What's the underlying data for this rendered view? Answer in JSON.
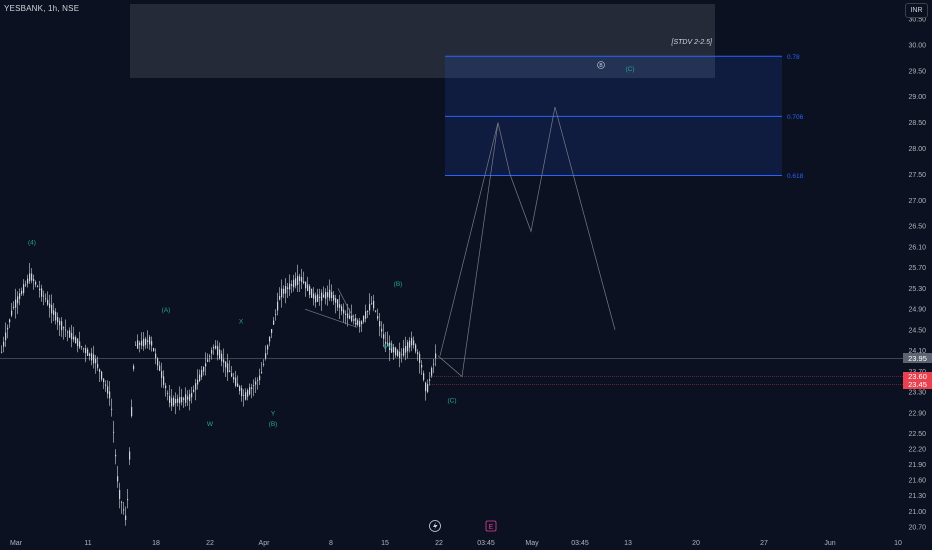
{
  "header": {
    "symbol": "YESBANK, 1h, NSE",
    "currency": "INR"
  },
  "price_axis": {
    "range": [
      20.6,
      30.75
    ],
    "ticks": [
      "30.50",
      "30.00",
      "29.50",
      "29.00",
      "28.50",
      "28.00",
      "27.50",
      "27.00",
      "26.50",
      "26.10",
      "25.70",
      "25.30",
      "24.90",
      "24.50",
      "24.10",
      "23.70",
      "23.30",
      "22.90",
      "22.50",
      "22.20",
      "21.90",
      "21.60",
      "21.30",
      "21.00",
      "20.70"
    ],
    "tags": [
      {
        "label": "23.95",
        "value": 23.95,
        "color": "#5d6370"
      },
      {
        "label": "23.60",
        "value": 23.6,
        "color": "#e9414f"
      },
      {
        "label": "23.45",
        "value": 23.45,
        "color": "#e9414f"
      }
    ]
  },
  "time_axis": {
    "labels": [
      "Mar",
      "11",
      "18",
      "22",
      "Apr",
      "8",
      "15",
      "22",
      "03:45",
      "May",
      "03:45",
      "13",
      "20",
      "27",
      "Jun",
      "10"
    ]
  },
  "drawings": {
    "target_zone_label": "[STDV 2-2.5]",
    "fib_levels": [
      {
        "label": "0.78",
        "value": 29.78
      },
      {
        "label": "0.706",
        "value": 28.62
      },
      {
        "label": "0.618",
        "value": 27.48
      }
    ],
    "wave_labels": [
      {
        "text": "(4)",
        "x": 2,
        "y": 26.15
      },
      {
        "text": "(A)",
        "x": 137,
        "y": 24.85
      },
      {
        "text": "X",
        "x": 212,
        "y": 24.62
      },
      {
        "text": "W",
        "x": 181,
        "y": 22.65
      },
      {
        "text": "Y",
        "x": 244,
        "y": 22.85
      },
      {
        "text": "(B)",
        "x": 244,
        "y": 22.65
      },
      {
        "text": "(B)",
        "x": 369,
        "y": 25.35
      },
      {
        "text": "(A)",
        "x": 359,
        "y": 24.15
      },
      {
        "text": "(C)",
        "x": 423,
        "y": 23.1
      },
      {
        "text": "(C)",
        "x": 601,
        "y": 29.5
      }
    ],
    "circle_marker": "B"
  },
  "events": {
    "dividend_icon": "lightning-icon",
    "earnings_badge": "E"
  },
  "colors": {
    "background": "#0b1120",
    "candle": "#d1d4dc",
    "wave_label": "#26a69a",
    "fib": "#2962ff",
    "zone_gray": "#3a3f4c",
    "axis_text": "#b2b5be"
  },
  "chart_data": {
    "type": "line",
    "title": "",
    "xlabel": "",
    "ylabel": "",
    "ylim": [
      20.6,
      30.75
    ],
    "series": [
      {
        "x": [
          "Mar",
          "11",
          "18",
          "22",
          "Apr",
          "8",
          "15",
          "22"
        ],
        "y": [
          24.4,
          23.6,
          23.2,
          23.2,
          25.5,
          25.3,
          24.1,
          23.9
        ]
      }
    ],
    "projection_y": [
      23.6,
      28.5,
      27.5,
      26.4,
      28.8,
      24.5
    ]
  }
}
